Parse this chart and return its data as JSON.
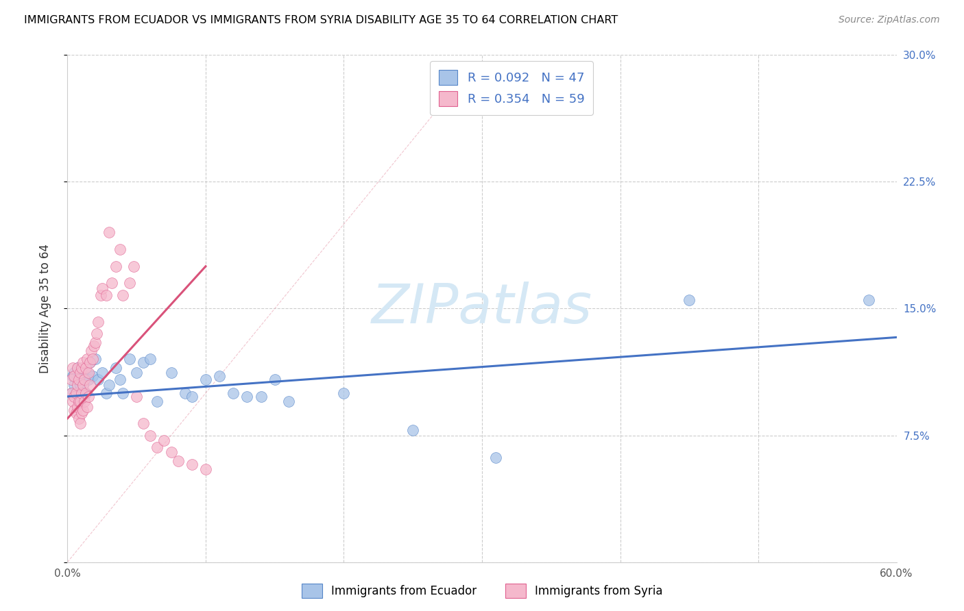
{
  "title": "IMMIGRANTS FROM ECUADOR VS IMMIGRANTS FROM SYRIA DISABILITY AGE 35 TO 64 CORRELATION CHART",
  "source": "Source: ZipAtlas.com",
  "ylabel": "Disability Age 35 to 64",
  "xlim": [
    0.0,
    0.6
  ],
  "ylim": [
    0.0,
    0.3
  ],
  "xticks": [
    0.0,
    0.1,
    0.2,
    0.3,
    0.4,
    0.5,
    0.6
  ],
  "xticklabels": [
    "0.0%",
    "",
    "",
    "",
    "",
    "",
    "60.0%"
  ],
  "yticks": [
    0.0,
    0.075,
    0.15,
    0.225,
    0.3
  ],
  "yticklabels": [
    "",
    "7.5%",
    "15.0%",
    "22.5%",
    "30.0%"
  ],
  "ecuador_R": 0.092,
  "ecuador_N": 47,
  "syria_R": 0.354,
  "syria_N": 59,
  "ecuador_color": "#a8c4e8",
  "ecuador_edge_color": "#5585c8",
  "syria_color": "#f5b8cc",
  "syria_edge_color": "#e06090",
  "diagonal_color": "#d8d8d8",
  "watermark_color": "#d5e8f5",
  "legend_label_ecuador": "Immigrants from Ecuador",
  "legend_label_syria": "Immigrants from Syria",
  "ecuador_line_color": "#4472c4",
  "syria_line_color": "#d9527a",
  "ecuador_x": [
    0.003,
    0.004,
    0.005,
    0.005,
    0.006,
    0.007,
    0.007,
    0.008,
    0.009,
    0.009,
    0.01,
    0.01,
    0.011,
    0.012,
    0.013,
    0.014,
    0.015,
    0.016,
    0.018,
    0.02,
    0.022,
    0.025,
    0.028,
    0.03,
    0.035,
    0.038,
    0.04,
    0.045,
    0.05,
    0.055,
    0.06,
    0.065,
    0.075,
    0.085,
    0.09,
    0.1,
    0.11,
    0.12,
    0.13,
    0.14,
    0.15,
    0.16,
    0.2,
    0.25,
    0.31,
    0.45,
    0.58
  ],
  "ecuador_y": [
    0.1,
    0.11,
    0.105,
    0.112,
    0.1,
    0.108,
    0.115,
    0.095,
    0.105,
    0.112,
    0.1,
    0.108,
    0.105,
    0.11,
    0.1,
    0.112,
    0.108,
    0.118,
    0.11,
    0.12,
    0.108,
    0.112,
    0.1,
    0.105,
    0.115,
    0.108,
    0.1,
    0.12,
    0.112,
    0.118,
    0.12,
    0.095,
    0.112,
    0.1,
    0.098,
    0.108,
    0.11,
    0.1,
    0.098,
    0.098,
    0.108,
    0.095,
    0.1,
    0.078,
    0.062,
    0.155,
    0.155
  ],
  "syria_x": [
    0.003,
    0.003,
    0.004,
    0.004,
    0.005,
    0.005,
    0.005,
    0.006,
    0.006,
    0.007,
    0.007,
    0.007,
    0.008,
    0.008,
    0.008,
    0.009,
    0.009,
    0.009,
    0.01,
    0.01,
    0.01,
    0.011,
    0.011,
    0.011,
    0.012,
    0.012,
    0.013,
    0.013,
    0.014,
    0.014,
    0.015,
    0.015,
    0.016,
    0.016,
    0.017,
    0.018,
    0.019,
    0.02,
    0.021,
    0.022,
    0.024,
    0.025,
    0.028,
    0.03,
    0.032,
    0.035,
    0.038,
    0.04,
    0.045,
    0.048,
    0.05,
    0.055,
    0.06,
    0.065,
    0.07,
    0.075,
    0.08,
    0.09,
    0.1
  ],
  "syria_y": [
    0.1,
    0.108,
    0.095,
    0.115,
    0.09,
    0.098,
    0.11,
    0.088,
    0.1,
    0.092,
    0.105,
    0.115,
    0.085,
    0.095,
    0.108,
    0.082,
    0.095,
    0.112,
    0.088,
    0.1,
    0.115,
    0.09,
    0.105,
    0.118,
    0.095,
    0.108,
    0.1,
    0.115,
    0.092,
    0.12,
    0.098,
    0.112,
    0.105,
    0.118,
    0.125,
    0.12,
    0.128,
    0.13,
    0.135,
    0.142,
    0.158,
    0.162,
    0.158,
    0.195,
    0.165,
    0.175,
    0.185,
    0.158,
    0.165,
    0.175,
    0.098,
    0.082,
    0.075,
    0.068,
    0.072,
    0.065,
    0.06,
    0.058,
    0.055
  ],
  "ecu_line_x0": 0.0,
  "ecu_line_x1": 0.6,
  "ecu_line_y0": 0.098,
  "ecu_line_y1": 0.133,
  "syr_line_x0": 0.0,
  "syr_line_x1": 0.1,
  "syr_line_y0": 0.085,
  "syr_line_y1": 0.175
}
